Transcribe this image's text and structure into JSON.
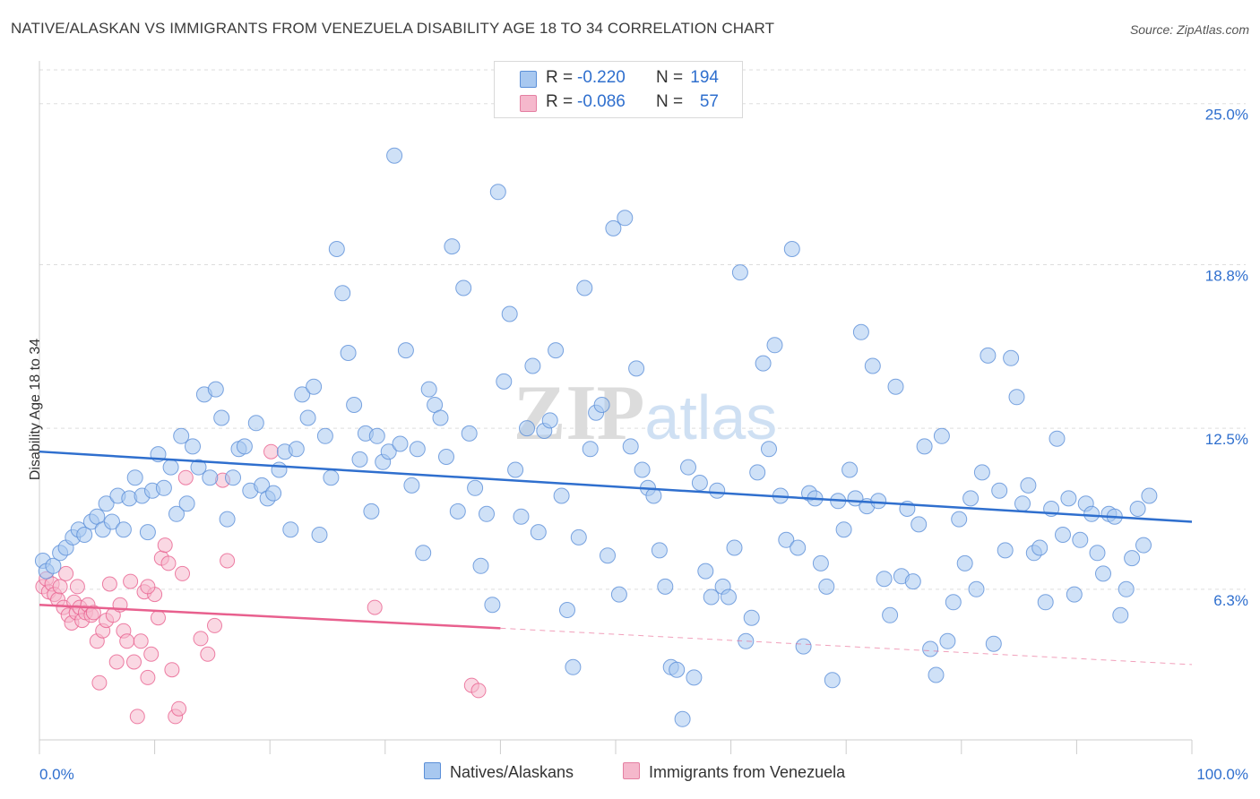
{
  "title": "NATIVE/ALASKAN VS IMMIGRANTS FROM VENEZUELA DISABILITY AGE 18 TO 34 CORRELATION CHART",
  "source": "Source: ZipAtlas.com",
  "watermark": "ZIPatlas",
  "colors": {
    "blue": "#2f6fce",
    "blue_fill": "#a8c8f0",
    "pink": "#e8608e",
    "pink_fill": "#f5b8cc",
    "grid": "#dddddd",
    "tick_label": "#2f6fce"
  },
  "legend": {
    "rows": [
      {
        "r_label": "R =",
        "r_value": "-0.220",
        "n_label": "N =",
        "n_value": "194",
        "color": "#a8c8f0"
      },
      {
        "r_label": "R =",
        "r_value": "-0.086",
        "n_label": "N =",
        "n_value": "57",
        "color": "#f5b8cc"
      }
    ]
  },
  "bottom_legend": {
    "items": [
      {
        "label": "Natives/Alaskans",
        "color": "#a8c8f0"
      },
      {
        "label": "Immigrants from Venezuela",
        "color": "#f5b8cc"
      }
    ]
  },
  "chart_data": {
    "type": "scatter",
    "title": "NATIVE/ALASKAN VS IMMIGRANTS FROM VENEZUELA DISABILITY AGE 18 TO 34 CORRELATION CHART",
    "xlabel": "",
    "ylabel": "Disability Age 18 to 34",
    "x_tick_labels": [
      "0.0%",
      "100.0%"
    ],
    "y_tick_labels": [
      "6.3%",
      "12.5%",
      "18.8%",
      "25.0%"
    ],
    "y_ticks": [
      6.3,
      12.5,
      18.8,
      25.0
    ],
    "xlim": [
      0,
      100
    ],
    "ylim": [
      0.5,
      26.3
    ],
    "grid": true,
    "legend_position": "top-center",
    "series": [
      {
        "name": "Natives/Alaskans",
        "color": "#2f6fce",
        "fill": "#a8c8f0",
        "trend": {
          "x": [
            0,
            100
          ],
          "y": [
            11.6,
            8.9
          ],
          "dashed_from": null
        },
        "points": [
          [
            0.3,
            7.4
          ],
          [
            0.6,
            7.0
          ],
          [
            1.2,
            7.2
          ],
          [
            1.8,
            7.7
          ],
          [
            2.3,
            7.9
          ],
          [
            2.9,
            8.3
          ],
          [
            3.4,
            8.6
          ],
          [
            3.9,
            8.4
          ],
          [
            4.5,
            8.9
          ],
          [
            5.0,
            9.1
          ],
          [
            5.5,
            8.6
          ],
          [
            5.8,
            9.6
          ],
          [
            6.3,
            8.9
          ],
          [
            6.8,
            9.9
          ],
          [
            7.3,
            8.6
          ],
          [
            7.8,
            9.8
          ],
          [
            8.3,
            10.6
          ],
          [
            8.9,
            9.9
          ],
          [
            9.4,
            8.5
          ],
          [
            9.8,
            10.1
          ],
          [
            10.3,
            11.5
          ],
          [
            10.8,
            10.2
          ],
          [
            11.4,
            11.0
          ],
          [
            11.9,
            9.2
          ],
          [
            12.3,
            12.2
          ],
          [
            12.8,
            9.6
          ],
          [
            13.3,
            11.8
          ],
          [
            13.8,
            11.0
          ],
          [
            14.3,
            13.8
          ],
          [
            14.8,
            10.6
          ],
          [
            15.3,
            14.0
          ],
          [
            15.8,
            12.9
          ],
          [
            16.3,
            9.0
          ],
          [
            16.8,
            10.6
          ],
          [
            17.3,
            11.7
          ],
          [
            17.8,
            11.8
          ],
          [
            18.3,
            10.1
          ],
          [
            18.8,
            12.7
          ],
          [
            19.3,
            10.3
          ],
          [
            19.8,
            9.8
          ],
          [
            20.3,
            10.0
          ],
          [
            20.8,
            10.9
          ],
          [
            21.3,
            11.6
          ],
          [
            21.8,
            8.6
          ],
          [
            22.3,
            11.7
          ],
          [
            22.8,
            13.8
          ],
          [
            23.3,
            12.9
          ],
          [
            23.8,
            14.1
          ],
          [
            24.3,
            8.4
          ],
          [
            24.8,
            12.2
          ],
          [
            25.3,
            10.6
          ],
          [
            25.8,
            19.4
          ],
          [
            26.3,
            17.7
          ],
          [
            26.8,
            15.4
          ],
          [
            27.3,
            13.4
          ],
          [
            27.8,
            11.3
          ],
          [
            28.3,
            12.3
          ],
          [
            28.8,
            9.3
          ],
          [
            29.3,
            12.2
          ],
          [
            29.8,
            11.2
          ],
          [
            30.3,
            11.6
          ],
          [
            30.8,
            23.0
          ],
          [
            31.3,
            11.9
          ],
          [
            31.8,
            15.5
          ],
          [
            32.3,
            10.3
          ],
          [
            32.8,
            11.7
          ],
          [
            33.3,
            7.7
          ],
          [
            33.8,
            14.0
          ],
          [
            34.3,
            13.4
          ],
          [
            34.8,
            12.9
          ],
          [
            35.3,
            11.4
          ],
          [
            35.8,
            19.5
          ],
          [
            36.3,
            9.3
          ],
          [
            36.8,
            17.9
          ],
          [
            37.3,
            12.3
          ],
          [
            37.8,
            10.2
          ],
          [
            38.3,
            7.2
          ],
          [
            38.8,
            9.2
          ],
          [
            39.3,
            5.7
          ],
          [
            39.8,
            21.6
          ],
          [
            40.3,
            14.3
          ],
          [
            40.8,
            16.9
          ],
          [
            41.3,
            10.9
          ],
          [
            41.8,
            9.1
          ],
          [
            42.3,
            12.5
          ],
          [
            42.8,
            14.9
          ],
          [
            43.3,
            8.5
          ],
          [
            43.8,
            12.4
          ],
          [
            44.3,
            12.8
          ],
          [
            44.8,
            15.5
          ],
          [
            45.3,
            9.9
          ],
          [
            45.8,
            5.5
          ],
          [
            46.3,
            3.3
          ],
          [
            46.8,
            8.3
          ],
          [
            47.3,
            17.9
          ],
          [
            47.8,
            11.7
          ],
          [
            48.3,
            13.1
          ],
          [
            48.8,
            13.4
          ],
          [
            49.3,
            7.6
          ],
          [
            49.8,
            20.2
          ],
          [
            50.3,
            6.1
          ],
          [
            50.8,
            20.6
          ],
          [
            51.3,
            11.8
          ],
          [
            51.8,
            14.8
          ],
          [
            52.3,
            10.9
          ],
          [
            52.8,
            10.2
          ],
          [
            53.3,
            9.9
          ],
          [
            53.8,
            7.8
          ],
          [
            54.3,
            6.4
          ],
          [
            54.8,
            3.3
          ],
          [
            55.3,
            3.2
          ],
          [
            55.8,
            1.3
          ],
          [
            56.3,
            11.0
          ],
          [
            56.8,
            2.9
          ],
          [
            57.3,
            10.4
          ],
          [
            57.8,
            7.0
          ],
          [
            58.3,
            6.0
          ],
          [
            58.8,
            10.1
          ],
          [
            59.3,
            6.4
          ],
          [
            59.8,
            6.0
          ],
          [
            60.3,
            7.9
          ],
          [
            60.8,
            18.5
          ],
          [
            61.3,
            4.3
          ],
          [
            61.8,
            5.2
          ],
          [
            62.3,
            10.8
          ],
          [
            62.8,
            15.0
          ],
          [
            63.3,
            11.7
          ],
          [
            63.8,
            15.7
          ],
          [
            64.3,
            9.9
          ],
          [
            64.8,
            8.2
          ],
          [
            65.3,
            19.4
          ],
          [
            65.8,
            7.9
          ],
          [
            66.3,
            4.1
          ],
          [
            66.8,
            10.0
          ],
          [
            67.3,
            9.8
          ],
          [
            67.8,
            7.3
          ],
          [
            68.3,
            6.4
          ],
          [
            68.8,
            2.8
          ],
          [
            69.3,
            9.7
          ],
          [
            69.8,
            8.6
          ],
          [
            70.3,
            10.9
          ],
          [
            70.8,
            9.8
          ],
          [
            71.3,
            16.2
          ],
          [
            71.8,
            9.5
          ],
          [
            72.3,
            14.9
          ],
          [
            72.8,
            9.7
          ],
          [
            73.3,
            6.7
          ],
          [
            73.8,
            5.3
          ],
          [
            74.3,
            14.1
          ],
          [
            74.8,
            6.8
          ],
          [
            75.3,
            9.4
          ],
          [
            75.8,
            6.6
          ],
          [
            76.3,
            8.8
          ],
          [
            76.8,
            11.8
          ],
          [
            77.3,
            4.0
          ],
          [
            77.8,
            3.0
          ],
          [
            78.3,
            12.2
          ],
          [
            78.8,
            4.3
          ],
          [
            79.3,
            5.8
          ],
          [
            79.8,
            9.0
          ],
          [
            80.3,
            7.3
          ],
          [
            80.8,
            9.8
          ],
          [
            81.3,
            6.3
          ],
          [
            81.8,
            10.8
          ],
          [
            82.3,
            15.3
          ],
          [
            82.8,
            4.2
          ],
          [
            83.3,
            10.1
          ],
          [
            83.8,
            7.8
          ],
          [
            84.3,
            15.2
          ],
          [
            84.8,
            13.7
          ],
          [
            85.3,
            9.6
          ],
          [
            85.8,
            10.3
          ],
          [
            86.3,
            7.7
          ],
          [
            86.8,
            7.9
          ],
          [
            87.3,
            5.8
          ],
          [
            87.8,
            9.4
          ],
          [
            88.3,
            12.1
          ],
          [
            88.8,
            8.4
          ],
          [
            89.3,
            9.8
          ],
          [
            89.8,
            6.1
          ],
          [
            90.3,
            8.2
          ],
          [
            90.8,
            9.6
          ],
          [
            91.3,
            9.2
          ],
          [
            91.8,
            7.7
          ],
          [
            92.3,
            6.9
          ],
          [
            92.8,
            9.2
          ],
          [
            93.3,
            9.1
          ],
          [
            93.8,
            5.3
          ],
          [
            94.3,
            6.3
          ],
          [
            94.8,
            7.5
          ],
          [
            95.3,
            9.4
          ],
          [
            95.8,
            8.0
          ],
          [
            96.3,
            9.9
          ]
        ]
      },
      {
        "name": "Immigrants from Venezuela",
        "color": "#e8608e",
        "fill": "#f5b8cc",
        "trend": {
          "x": [
            0,
            40,
            100
          ],
          "y": [
            5.7,
            4.8,
            3.4
          ],
          "dashed_from": 40
        },
        "points": [
          [
            0.3,
            6.4
          ],
          [
            0.6,
            6.7
          ],
          [
            0.8,
            6.2
          ],
          [
            1.1,
            6.5
          ],
          [
            1.3,
            6.1
          ],
          [
            1.6,
            5.9
          ],
          [
            1.8,
            6.4
          ],
          [
            2.1,
            5.6
          ],
          [
            2.3,
            6.9
          ],
          [
            2.5,
            5.3
          ],
          [
            2.8,
            5.0
          ],
          [
            3.0,
            5.8
          ],
          [
            3.2,
            5.4
          ],
          [
            3.5,
            5.6
          ],
          [
            3.7,
            5.1
          ],
          [
            4.0,
            5.4
          ],
          [
            4.2,
            5.7
          ],
          [
            4.5,
            5.3
          ],
          [
            4.7,
            5.4
          ],
          [
            5.0,
            4.3
          ],
          [
            5.2,
            2.7
          ],
          [
            5.5,
            4.7
          ],
          [
            5.8,
            5.1
          ],
          [
            6.1,
            6.5
          ],
          [
            6.4,
            5.3
          ],
          [
            6.7,
            3.5
          ],
          [
            7.0,
            5.7
          ],
          [
            7.3,
            4.7
          ],
          [
            7.6,
            4.3
          ],
          [
            7.9,
            6.6
          ],
          [
            8.2,
            3.5
          ],
          [
            8.5,
            1.4
          ],
          [
            8.8,
            4.3
          ],
          [
            9.1,
            6.2
          ],
          [
            9.4,
            2.9
          ],
          [
            9.7,
            3.8
          ],
          [
            10.0,
            6.1
          ],
          [
            10.3,
            5.2
          ],
          [
            10.6,
            7.5
          ],
          [
            10.9,
            8.0
          ],
          [
            11.2,
            7.3
          ],
          [
            11.5,
            3.2
          ],
          [
            11.8,
            1.4
          ],
          [
            12.1,
            1.7
          ],
          [
            12.4,
            6.9
          ],
          [
            12.7,
            10.6
          ],
          [
            14.0,
            4.4
          ],
          [
            14.6,
            3.8
          ],
          [
            15.2,
            4.9
          ],
          [
            15.9,
            10.5
          ],
          [
            16.3,
            7.4
          ],
          [
            20.1,
            11.6
          ],
          [
            29.1,
            5.6
          ],
          [
            37.5,
            2.6
          ],
          [
            38.1,
            2.4
          ],
          [
            9.4,
            6.4
          ],
          [
            3.3,
            6.4
          ]
        ]
      }
    ]
  }
}
